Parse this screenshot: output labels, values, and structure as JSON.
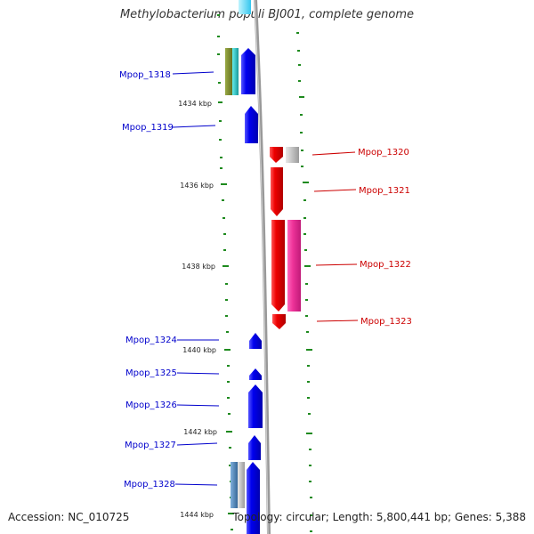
{
  "title": "Methylobacterium populi BJ001, complete genome",
  "footer": {
    "accession": "Accession: NC_010725",
    "summary": "Topology: circular; Length: 5,800,441 bp; Genes: 5,388"
  },
  "colors": {
    "forward": "#0000ee",
    "reverse": "#ee0000",
    "pink": "#ee3399",
    "olive": "#7a8a2a",
    "teal": "#22bbbb",
    "grey": "#c0c0c0",
    "steel": "#4a7fb0",
    "tick": "#1e8a1e",
    "backbone": "#888888"
  },
  "scale": {
    "unit": "kbp",
    "labels": [
      "1434 kbp",
      "1436 kbp",
      "1438 kbp",
      "1440 kbp",
      "1442 kbp",
      "1444 kbp"
    ]
  },
  "genes": [
    {
      "name": "Mpop_1318",
      "strand": "forward"
    },
    {
      "name": "Mpop_1319",
      "strand": "forward"
    },
    {
      "name": "Mpop_1320",
      "strand": "reverse"
    },
    {
      "name": "Mpop_1321",
      "strand": "reverse"
    },
    {
      "name": "Mpop_1322",
      "strand": "reverse"
    },
    {
      "name": "Mpop_1323",
      "strand": "reverse"
    },
    {
      "name": "Mpop_1324",
      "strand": "forward"
    },
    {
      "name": "Mpop_1325",
      "strand": "forward"
    },
    {
      "name": "Mpop_1326",
      "strand": "forward"
    },
    {
      "name": "Mpop_1327",
      "strand": "forward"
    },
    {
      "name": "Mpop_1328",
      "strand": "forward"
    }
  ]
}
